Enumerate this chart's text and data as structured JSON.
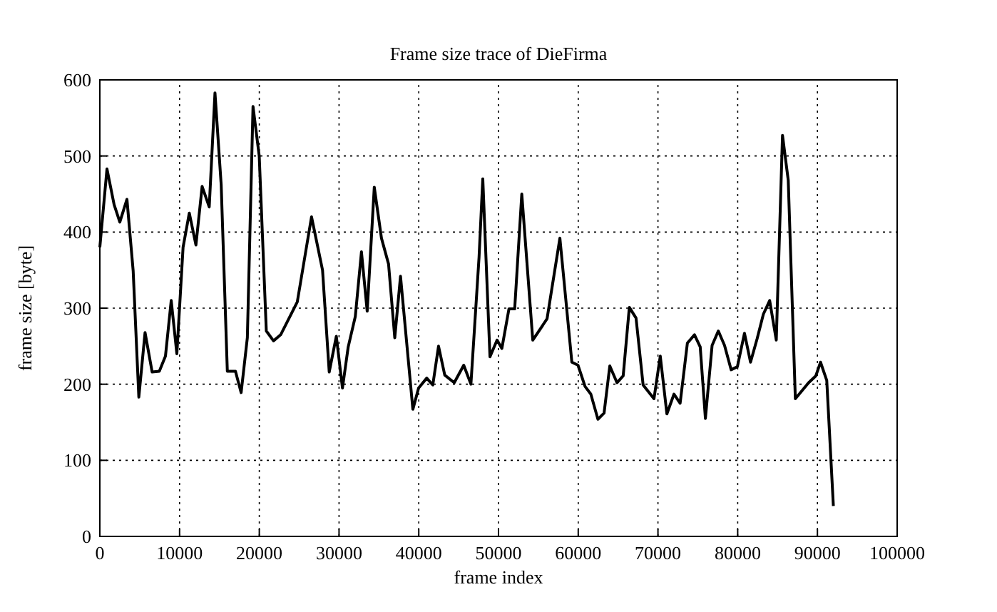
{
  "chart_data": {
    "type": "line",
    "title": "Frame size trace of DieFirma",
    "xlabel": "frame index",
    "ylabel": "frame size [byte]",
    "x": [
      0,
      895,
      1790,
      2506,
      3400,
      4180,
      4890,
      5670,
      6560,
      7460,
      8230,
      8950,
      9660,
      10440,
      11220,
      12050,
      12830,
      13720,
      14440,
      15220,
      15990,
      17010,
      17720,
      18500,
      19210,
      19990,
      20880,
      21780,
      22680,
      24760,
      26550,
      27930,
      28770,
      29660,
      30430,
      31150,
      32040,
      32810,
      33530,
      34420,
      35320,
      36210,
      36990,
      37710,
      39260,
      39980,
      41000,
      41760,
      42480,
      43260,
      44450,
      45640,
      46540,
      47560,
      48030,
      48930,
      49820,
      50420,
      51310,
      52030,
      52920,
      54300,
      56090,
      57700,
      59200,
      59970,
      60860,
      61580,
      62470,
      63240,
      63960,
      64860,
      65640,
      66410,
      67250,
      68140,
      69500,
      70290,
      71120,
      72010,
      72780,
      73690,
      74580,
      75300,
      75950,
      76790,
      77570,
      78350,
      79180,
      79960,
      80850,
      81610,
      82440,
      83220,
      84010,
      84840,
      85620,
      86340,
      87230,
      88900,
      89800,
      90390,
      91170,
      92000
    ],
    "series": [
      {
        "color": "#000000",
        "values": [
          380,
          483,
          436,
          413,
          443,
          349,
          183,
          268,
          216,
          217,
          237,
          310,
          240,
          380,
          425,
          383,
          460,
          433,
          583,
          462,
          217,
          217,
          189,
          261,
          565,
          500,
          270,
          257,
          265,
          308,
          420,
          350,
          216,
          263,
          195,
          249,
          289,
          374,
          296,
          459,
          392,
          358,
          261,
          342,
          167,
          195,
          208,
          199,
          250,
          212,
          202,
          225,
          200,
          367,
          470,
          236,
          258,
          247,
          299,
          299,
          450,
          258,
          286,
          392,
          229,
          225,
          197,
          187,
          154,
          162,
          224,
          202,
          211,
          301,
          287,
          199,
          181,
          237,
          161,
          187,
          175,
          254,
          265,
          249,
          155,
          251,
          270,
          251,
          219,
          223,
          267,
          229,
          260,
          292,
          310,
          258,
          527,
          468,
          181,
          202,
          211,
          229,
          205,
          40
        ]
      }
    ],
    "xlim": [
      0,
      100000
    ],
    "xticks": [
      0,
      10000,
      20000,
      30000,
      40000,
      50000,
      60000,
      70000,
      80000,
      90000,
      100000
    ],
    "ylim": [
      0,
      600
    ],
    "yticks": [
      0,
      100,
      200,
      300,
      400,
      500,
      600
    ],
    "grid": true,
    "marker": "none",
    "line_style": "solid"
  }
}
